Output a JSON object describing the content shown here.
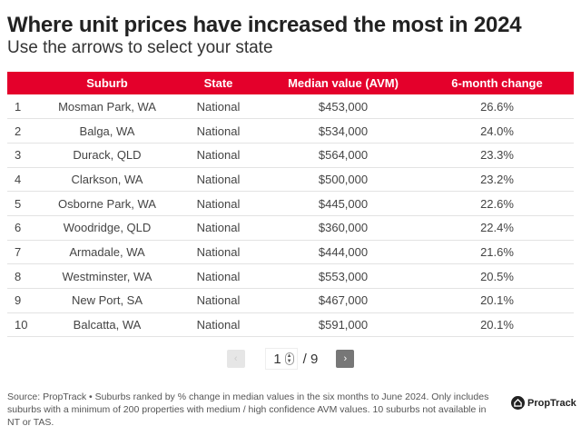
{
  "title": "Where unit prices have increased the most in 2024",
  "subtitle": "Use the arrows to select your state",
  "chart_data": {
    "type": "table",
    "columns": [
      "",
      "Suburb",
      "State",
      "Median value (AVM)",
      "6-month change"
    ],
    "rows": [
      [
        "1",
        "Mosman Park, WA",
        "National",
        "$453,000",
        "26.6%"
      ],
      [
        "2",
        "Balga, WA",
        "National",
        "$534,000",
        "24.0%"
      ],
      [
        "3",
        "Durack, QLD",
        "National",
        "$564,000",
        "23.3%"
      ],
      [
        "4",
        "Clarkson, WA",
        "National",
        "$500,000",
        "23.2%"
      ],
      [
        "5",
        "Osborne Park, WA",
        "National",
        "$445,000",
        "22.6%"
      ],
      [
        "6",
        "Woodridge, QLD",
        "National",
        "$360,000",
        "22.4%"
      ],
      [
        "7",
        "Armadale, WA",
        "National",
        "$444,000",
        "21.6%"
      ],
      [
        "8",
        "Westminster, WA",
        "National",
        "$553,000",
        "20.5%"
      ],
      [
        "9",
        "New Port, SA",
        "National",
        "$467,000",
        "20.1%"
      ],
      [
        "10",
        "Balcatta, WA",
        "National",
        "$591,000",
        "20.1%"
      ]
    ]
  },
  "pager": {
    "prev": "‹",
    "next": "›",
    "page": "1",
    "total": "/ 9"
  },
  "footer": "Source: PropTrack • Suburbs ranked by % change in median values in the six months to June 2024. Only includes suburbs with a minimum of 200 properties with medium / high confidence AVM values. 10 suburbs not available in NT or TAS.",
  "logo": "PropTrack",
  "colors": {
    "header": "#e4002b"
  }
}
